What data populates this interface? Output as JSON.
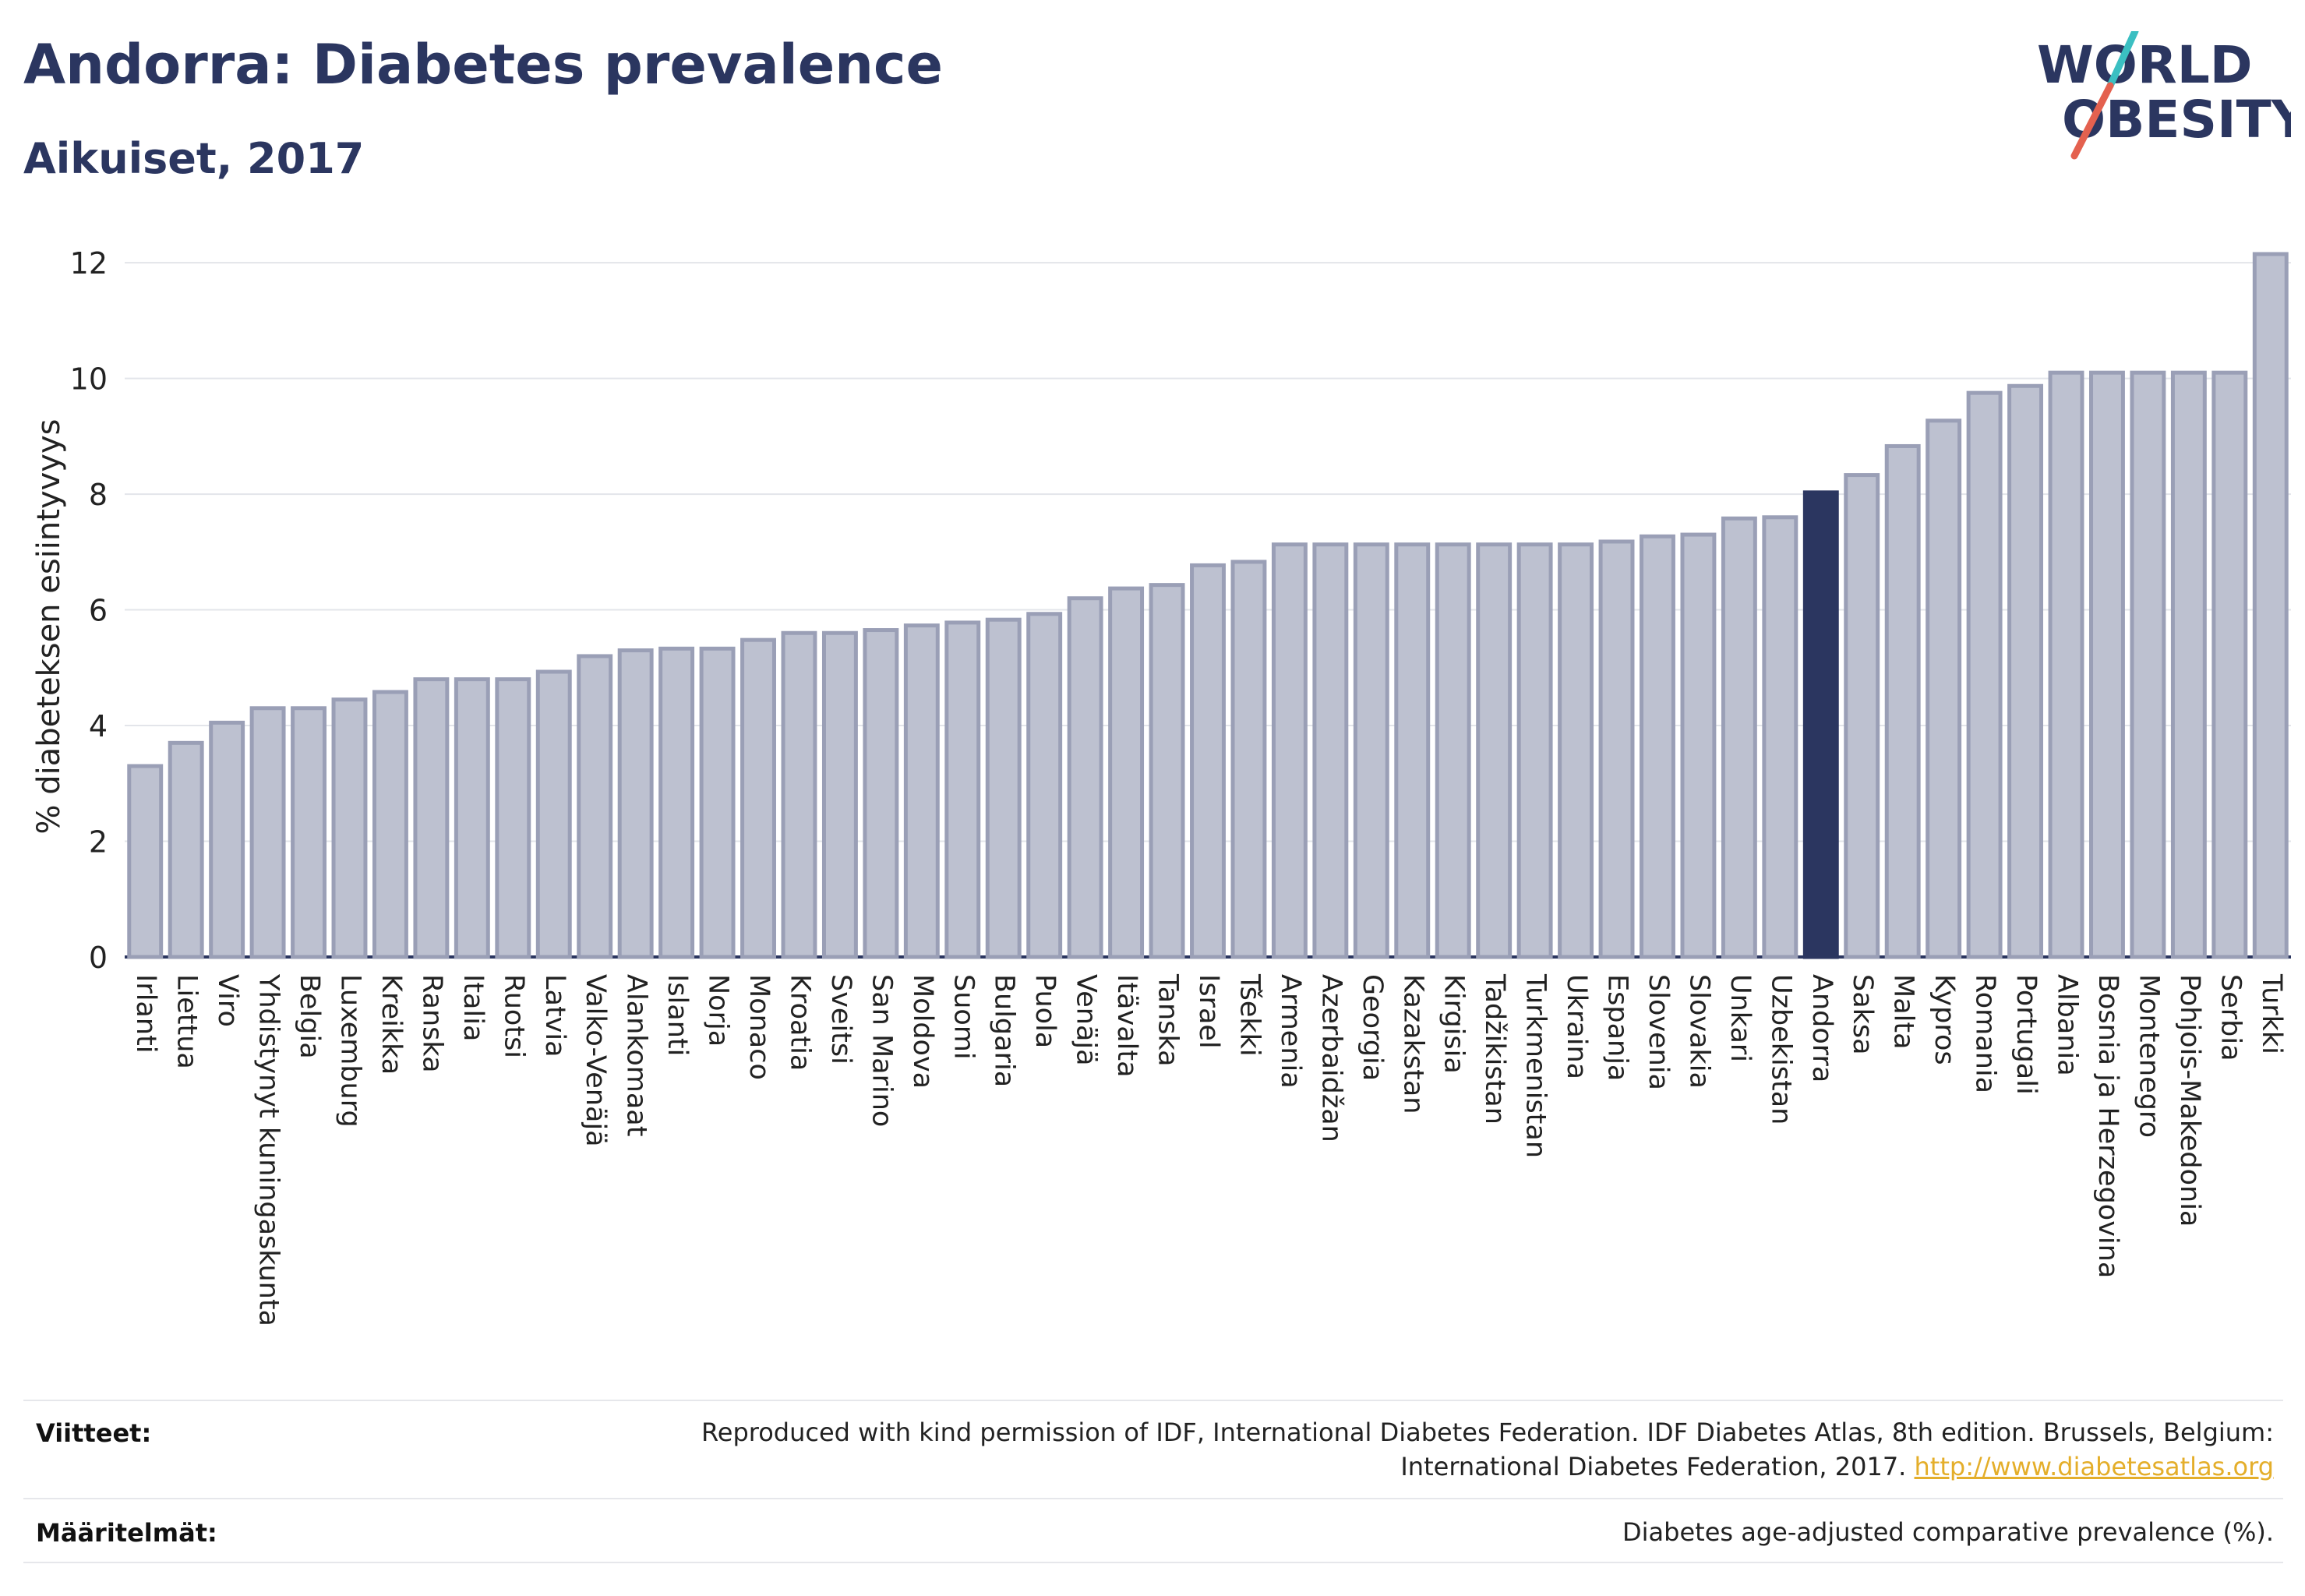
{
  "header": {
    "title": "Andorra: Diabetes prevalence",
    "subtitle": "Aikuiset, 2017"
  },
  "logo": {
    "line1": "WORLD",
    "line2": "OBESITY",
    "colors": {
      "text": "#2b3660",
      "slash_teal": "#3bbfc2",
      "slash_red": "#e4614f"
    }
  },
  "chart_data": {
    "type": "bar",
    "title": "Andorra: Diabetes prevalence",
    "subtitle": "Aikuiset, 2017",
    "xlabel": "",
    "ylabel": "% diabeteksen esiintyvyys",
    "ylim": [
      0,
      12.5
    ],
    "yticks": [
      0,
      2,
      4,
      6,
      8,
      10,
      12
    ],
    "grid": true,
    "highlight": "Andorra",
    "colors": {
      "bar": "#bdc1d0",
      "bar_edge": "#9a9fb6",
      "highlight": "#2b3660"
    },
    "categories": [
      "Irlanti",
      "Liettua",
      "Viro",
      "Yhdistynyt kuningaskunta",
      "Belgia",
      "Luxemburg",
      "Kreikka",
      "Ranska",
      "Italia",
      "Ruotsi",
      "Latvia",
      "Valko-Venäjä",
      "Alankomaat",
      "Islanti",
      "Norja",
      "Monaco",
      "Kroatia",
      "Sveitsi",
      "San Marino",
      "Moldova",
      "Suomi",
      "Bulgaria",
      "Puola",
      "Venäjä",
      "Itävalta",
      "Tanska",
      "Israel",
      "Tšekki",
      "Armenia",
      "Azerbaidžan",
      "Georgia",
      "Kazakstan",
      "Kirgisia",
      "Tadžikistan",
      "Turkmenistan",
      "Ukraina",
      "Espanja",
      "Slovenia",
      "Slovakia",
      "Unkari",
      "Uzbekistan",
      "Andorra",
      "Saksa",
      "Malta",
      "Kypros",
      "Romania",
      "Portugali",
      "Albania",
      "Bosnia ja Herzegovina",
      "Montenegro",
      "Pohjois-Makedonia",
      "Serbia",
      "Turkki"
    ],
    "values": [
      3.3,
      3.7,
      4.05,
      4.3,
      4.3,
      4.45,
      4.58,
      4.8,
      4.8,
      4.8,
      4.93,
      5.2,
      5.3,
      5.33,
      5.33,
      5.48,
      5.6,
      5.6,
      5.65,
      5.73,
      5.78,
      5.83,
      5.93,
      6.2,
      6.37,
      6.43,
      6.77,
      6.83,
      7.13,
      7.13,
      7.13,
      7.13,
      7.13,
      7.13,
      7.13,
      7.13,
      7.18,
      7.27,
      7.3,
      7.58,
      7.6,
      8.03,
      8.33,
      8.83,
      9.27,
      9.75,
      9.87,
      10.1,
      10.1,
      10.1,
      10.1,
      10.1,
      12.15
    ]
  },
  "footer": {
    "refs_label": "Viitteet:",
    "refs_text_line1": "Reproduced with kind permission of IDF, International Diabetes Federation. IDF Diabetes Atlas, 8th edition. Brussels, Belgium:",
    "refs_text_line2": "International Diabetes Federation, 2017.",
    "refs_link": "http://www.diabetesatlas.org",
    "defs_label": "Määritelmät:",
    "defs_text": "Diabetes age-adjusted comparative prevalence (%)."
  }
}
